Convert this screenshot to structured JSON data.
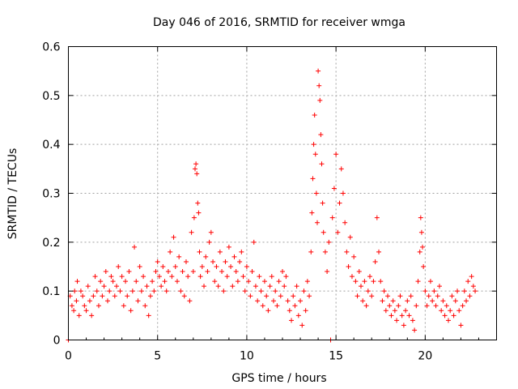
{
  "chart_data": {
    "type": "scatter",
    "title": "Day 046 of 2016, SRMTID for receiver wmga",
    "xlabel": "GPS time / hours",
    "ylabel": "SRMTID / TECUs",
    "xlim": [
      0,
      24
    ],
    "ylim": [
      0,
      0.6
    ],
    "x_ticks": [
      0,
      5,
      10,
      15,
      20
    ],
    "x_tick_labels": [
      "0",
      "5",
      "10",
      "15",
      "20"
    ],
    "y_ticks": [
      0,
      0.1,
      0.2,
      0.3,
      0.4,
      0.5,
      0.6
    ],
    "y_tick_labels": [
      "0",
      "0.1",
      "0.2",
      "0.3",
      "0.4",
      "0.5",
      "0.6"
    ],
    "grid": true,
    "marker": "plus",
    "color": "#ff0000",
    "points": [
      [
        0.0,
        0.0
      ],
      [
        0.1,
        0.09
      ],
      [
        0.2,
        0.07
      ],
      [
        0.3,
        0.06
      ],
      [
        0.35,
        0.1
      ],
      [
        0.45,
        0.08
      ],
      [
        0.5,
        0.12
      ],
      [
        0.6,
        0.05
      ],
      [
        0.7,
        0.1
      ],
      [
        0.8,
        0.09
      ],
      [
        0.9,
        0.07
      ],
      [
        1.0,
        0.06
      ],
      [
        1.1,
        0.11
      ],
      [
        1.2,
        0.08
      ],
      [
        1.3,
        0.05
      ],
      [
        1.4,
        0.09
      ],
      [
        1.5,
        0.13
      ],
      [
        1.6,
        0.1
      ],
      [
        1.7,
        0.07
      ],
      [
        1.8,
        0.12
      ],
      [
        1.9,
        0.09
      ],
      [
        2.0,
        0.11
      ],
      [
        2.1,
        0.14
      ],
      [
        2.2,
        0.08
      ],
      [
        2.3,
        0.1
      ],
      [
        2.4,
        0.13
      ],
      [
        2.5,
        0.12
      ],
      [
        2.6,
        0.09
      ],
      [
        2.7,
        0.11
      ],
      [
        2.8,
        0.15
      ],
      [
        2.9,
        0.1
      ],
      [
        3.0,
        0.13
      ],
      [
        3.1,
        0.07
      ],
      [
        3.2,
        0.12
      ],
      [
        3.3,
        0.09
      ],
      [
        3.4,
        0.14
      ],
      [
        3.5,
        0.06
      ],
      [
        3.6,
        0.1
      ],
      [
        3.7,
        0.19
      ],
      [
        3.8,
        0.12
      ],
      [
        3.9,
        0.08
      ],
      [
        4.0,
        0.15
      ],
      [
        4.1,
        0.1
      ],
      [
        4.2,
        0.13
      ],
      [
        4.3,
        0.07
      ],
      [
        4.4,
        0.11
      ],
      [
        4.5,
        0.05
      ],
      [
        4.6,
        0.09
      ],
      [
        4.7,
        0.12
      ],
      [
        4.8,
        0.1
      ],
      [
        4.9,
        0.14
      ],
      [
        5.0,
        0.16
      ],
      [
        5.1,
        0.13
      ],
      [
        5.2,
        0.11
      ],
      [
        5.3,
        0.15
      ],
      [
        5.4,
        0.12
      ],
      [
        5.5,
        0.1
      ],
      [
        5.6,
        0.14
      ],
      [
        5.7,
        0.18
      ],
      [
        5.8,
        0.13
      ],
      [
        5.9,
        0.21
      ],
      [
        6.0,
        0.15
      ],
      [
        6.1,
        0.12
      ],
      [
        6.2,
        0.17
      ],
      [
        6.3,
        0.1
      ],
      [
        6.4,
        0.14
      ],
      [
        6.5,
        0.09
      ],
      [
        6.6,
        0.16
      ],
      [
        6.7,
        0.13
      ],
      [
        6.8,
        0.08
      ],
      [
        6.9,
        0.22
      ],
      [
        7.0,
        0.14
      ],
      [
        7.05,
        0.25
      ],
      [
        7.1,
        0.35
      ],
      [
        7.15,
        0.36
      ],
      [
        7.2,
        0.34
      ],
      [
        7.25,
        0.28
      ],
      [
        7.3,
        0.26
      ],
      [
        7.35,
        0.18
      ],
      [
        7.4,
        0.13
      ],
      [
        7.5,
        0.15
      ],
      [
        7.6,
        0.11
      ],
      [
        7.7,
        0.17
      ],
      [
        7.8,
        0.14
      ],
      [
        7.9,
        0.2
      ],
      [
        8.0,
        0.22
      ],
      [
        8.1,
        0.16
      ],
      [
        8.2,
        0.12
      ],
      [
        8.3,
        0.15
      ],
      [
        8.4,
        0.11
      ],
      [
        8.5,
        0.18
      ],
      [
        8.6,
        0.14
      ],
      [
        8.7,
        0.1
      ],
      [
        8.8,
        0.16
      ],
      [
        8.9,
        0.13
      ],
      [
        9.0,
        0.19
      ],
      [
        9.1,
        0.15
      ],
      [
        9.2,
        0.11
      ],
      [
        9.3,
        0.17
      ],
      [
        9.4,
        0.14
      ],
      [
        9.5,
        0.12
      ],
      [
        9.6,
        0.16
      ],
      [
        9.7,
        0.18
      ],
      [
        9.8,
        0.13
      ],
      [
        9.9,
        0.1
      ],
      [
        10.0,
        0.15
      ],
      [
        10.1,
        0.12
      ],
      [
        10.2,
        0.09
      ],
      [
        10.3,
        0.14
      ],
      [
        10.4,
        0.2
      ],
      [
        10.5,
        0.11
      ],
      [
        10.6,
        0.08
      ],
      [
        10.7,
        0.13
      ],
      [
        10.8,
        0.1
      ],
      [
        10.9,
        0.07
      ],
      [
        11.0,
        0.12
      ],
      [
        11.1,
        0.09
      ],
      [
        11.2,
        0.06
      ],
      [
        11.3,
        0.11
      ],
      [
        11.4,
        0.13
      ],
      [
        11.5,
        0.08
      ],
      [
        11.6,
        0.1
      ],
      [
        11.7,
        0.07
      ],
      [
        11.8,
        0.12
      ],
      [
        11.9,
        0.09
      ],
      [
        12.0,
        0.14
      ],
      [
        12.1,
        0.11
      ],
      [
        12.2,
        0.13
      ],
      [
        12.3,
        0.08
      ],
      [
        12.4,
        0.06
      ],
      [
        12.5,
        0.04
      ],
      [
        12.6,
        0.09
      ],
      [
        12.7,
        0.07
      ],
      [
        12.8,
        0.11
      ],
      [
        12.9,
        0.05
      ],
      [
        13.0,
        0.08
      ],
      [
        13.1,
        0.03
      ],
      [
        13.2,
        0.1
      ],
      [
        13.3,
        0.06
      ],
      [
        13.4,
        0.12
      ],
      [
        13.5,
        0.09
      ],
      [
        13.6,
        0.18
      ],
      [
        13.65,
        0.26
      ],
      [
        13.7,
        0.33
      ],
      [
        13.75,
        0.4
      ],
      [
        13.8,
        0.46
      ],
      [
        13.85,
        0.38
      ],
      [
        13.9,
        0.3
      ],
      [
        13.95,
        0.24
      ],
      [
        14.0,
        0.55
      ],
      [
        14.05,
        0.52
      ],
      [
        14.1,
        0.49
      ],
      [
        14.15,
        0.42
      ],
      [
        14.2,
        0.36
      ],
      [
        14.25,
        0.28
      ],
      [
        14.3,
        0.22
      ],
      [
        14.4,
        0.18
      ],
      [
        14.5,
        0.14
      ],
      [
        14.6,
        0.2
      ],
      [
        14.7,
        0.0
      ],
      [
        14.8,
        0.25
      ],
      [
        14.9,
        0.31
      ],
      [
        15.0,
        0.38
      ],
      [
        15.1,
        0.22
      ],
      [
        15.2,
        0.28
      ],
      [
        15.3,
        0.35
      ],
      [
        15.4,
        0.3
      ],
      [
        15.5,
        0.24
      ],
      [
        15.6,
        0.18
      ],
      [
        15.7,
        0.15
      ],
      [
        15.8,
        0.21
      ],
      [
        15.9,
        0.13
      ],
      [
        16.0,
        0.17
      ],
      [
        16.1,
        0.12
      ],
      [
        16.2,
        0.09
      ],
      [
        16.3,
        0.14
      ],
      [
        16.4,
        0.11
      ],
      [
        16.5,
        0.08
      ],
      [
        16.6,
        0.12
      ],
      [
        16.7,
        0.07
      ],
      [
        16.8,
        0.1
      ],
      [
        16.9,
        0.13
      ],
      [
        17.0,
        0.09
      ],
      [
        17.1,
        0.12
      ],
      [
        17.2,
        0.16
      ],
      [
        17.3,
        0.25
      ],
      [
        17.4,
        0.18
      ],
      [
        17.5,
        0.12
      ],
      [
        17.6,
        0.08
      ],
      [
        17.7,
        0.1
      ],
      [
        17.8,
        0.06
      ],
      [
        17.9,
        0.09
      ],
      [
        18.0,
        0.07
      ],
      [
        18.1,
        0.05
      ],
      [
        18.2,
        0.08
      ],
      [
        18.3,
        0.06
      ],
      [
        18.4,
        0.04
      ],
      [
        18.5,
        0.07
      ],
      [
        18.6,
        0.09
      ],
      [
        18.7,
        0.05
      ],
      [
        18.8,
        0.03
      ],
      [
        18.9,
        0.06
      ],
      [
        19.0,
        0.08
      ],
      [
        19.1,
        0.05
      ],
      [
        19.2,
        0.09
      ],
      [
        19.3,
        0.04
      ],
      [
        19.4,
        0.02
      ],
      [
        19.5,
        0.07
      ],
      [
        19.6,
        0.12
      ],
      [
        19.7,
        0.18
      ],
      [
        19.75,
        0.25
      ],
      [
        19.8,
        0.22
      ],
      [
        19.85,
        0.19
      ],
      [
        19.9,
        0.15
      ],
      [
        20.0,
        0.1
      ],
      [
        20.1,
        0.07
      ],
      [
        20.2,
        0.09
      ],
      [
        20.3,
        0.12
      ],
      [
        20.4,
        0.08
      ],
      [
        20.5,
        0.1
      ],
      [
        20.6,
        0.07
      ],
      [
        20.7,
        0.09
      ],
      [
        20.8,
        0.11
      ],
      [
        20.9,
        0.06
      ],
      [
        21.0,
        0.08
      ],
      [
        21.1,
        0.05
      ],
      [
        21.2,
        0.07
      ],
      [
        21.3,
        0.04
      ],
      [
        21.4,
        0.06
      ],
      [
        21.5,
        0.09
      ],
      [
        21.6,
        0.05
      ],
      [
        21.7,
        0.08
      ],
      [
        21.8,
        0.1
      ],
      [
        21.9,
        0.06
      ],
      [
        22.0,
        0.03
      ],
      [
        22.1,
        0.07
      ],
      [
        22.2,
        0.1
      ],
      [
        22.3,
        0.08
      ],
      [
        22.4,
        0.12
      ],
      [
        22.5,
        0.09
      ],
      [
        22.6,
        0.13
      ],
      [
        22.7,
        0.11
      ],
      [
        22.8,
        0.1
      ]
    ]
  }
}
